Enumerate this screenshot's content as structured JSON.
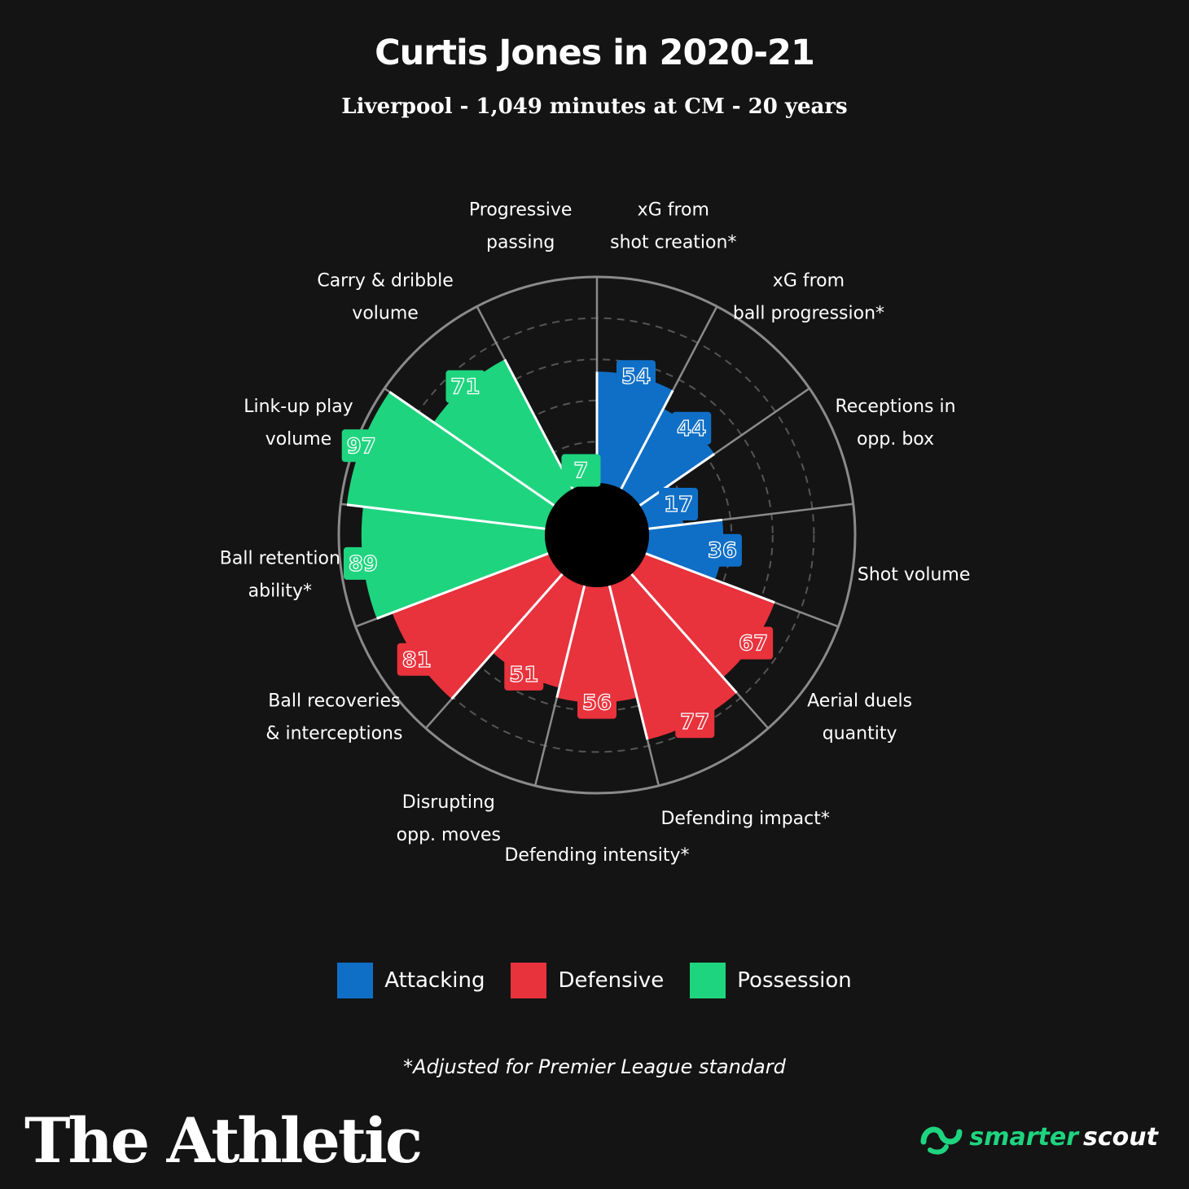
{
  "header": {
    "title": "Curtis Jones in 2020-21",
    "subtitle": "Liverpool - 1,049 minutes at CM - 20 years"
  },
  "chart_data": {
    "type": "polar-bar",
    "ylim": [
      0,
      100
    ],
    "start_angle_deg": 0,
    "direction": "clockwise",
    "colors": {
      "Attacking": "#0f6fc6",
      "Defensive": "#e8323c",
      "Possession": "#1fd47f"
    },
    "categories": [
      {
        "label": [
          "xG from",
          "shot creation*"
        ],
        "value": 54,
        "group": "Attacking"
      },
      {
        "label": [
          "xG from",
          "ball progression*"
        ],
        "value": 44,
        "group": "Attacking"
      },
      {
        "label": [
          "Receptions in",
          "opp. box"
        ],
        "value": 17,
        "group": "Attacking"
      },
      {
        "label": [
          "Shot volume"
        ],
        "value": 36,
        "group": "Attacking"
      },
      {
        "label": [
          "Aerial duels",
          "quantity"
        ],
        "value": 67,
        "group": "Defensive"
      },
      {
        "label": [
          "Defending impact*"
        ],
        "value": 77,
        "group": "Defensive"
      },
      {
        "label": [
          "Defending intensity*"
        ],
        "value": 56,
        "group": "Defensive"
      },
      {
        "label": [
          "Disrupting",
          "opp. moves"
        ],
        "value": 51,
        "group": "Defensive"
      },
      {
        "label": [
          "Ball recoveries",
          "& interceptions"
        ],
        "value": 81,
        "group": "Defensive"
      },
      {
        "label": [
          "Ball retention",
          "ability*"
        ],
        "value": 89,
        "group": "Possession"
      },
      {
        "label": [
          "Link-up play",
          "volume"
        ],
        "value": 97,
        "group": "Possession"
      },
      {
        "label": [
          "Carry & dribble",
          "volume"
        ],
        "value": 71,
        "group": "Possession"
      },
      {
        "label": [
          "Progressive",
          "passing"
        ],
        "value": 7,
        "group": "Possession"
      }
    ],
    "legend": [
      {
        "name": "Attacking",
        "color": "#0f6fc6"
      },
      {
        "name": "Defensive",
        "color": "#e8323c"
      },
      {
        "name": "Possession",
        "color": "#1fd47f"
      }
    ],
    "grid": true
  },
  "footer": {
    "note": "*Adjusted for Premier League standard",
    "brand": "The Athletic",
    "partner_a": "smarter",
    "partner_b": "scout",
    "partner_icon": "smarterscout-logo-icon"
  }
}
